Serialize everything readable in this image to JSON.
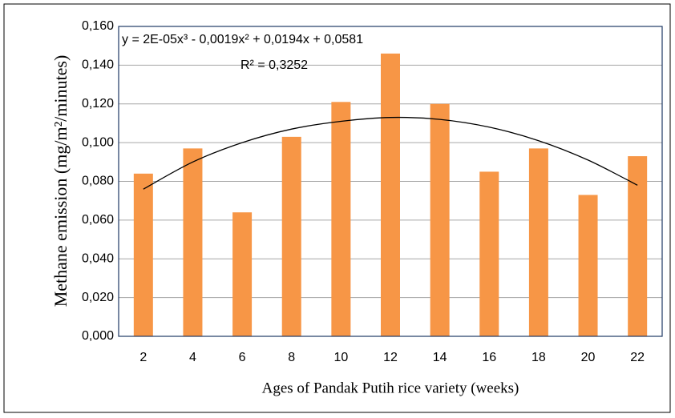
{
  "chart_data": {
    "type": "bar",
    "categories": [
      "2",
      "4",
      "6",
      "8",
      "10",
      "12",
      "14",
      "16",
      "18",
      "20",
      "22"
    ],
    "values": [
      0.084,
      0.097,
      0.064,
      0.103,
      0.121,
      0.146,
      0.12,
      0.085,
      0.097,
      0.073,
      0.093
    ],
    "color": "#f79646",
    "ylim": [
      0,
      0.16
    ],
    "yticks": [
      {
        "value": 0,
        "label": "0,000"
      },
      {
        "value": 0.02,
        "label": "0,020"
      },
      {
        "value": 0.04,
        "label": "0,040"
      },
      {
        "value": 0.06,
        "label": "0,060"
      },
      {
        "value": 0.08,
        "label": "0,080"
      },
      {
        "value": 0.1,
        "label": "0,100"
      },
      {
        "value": 0.12,
        "label": "0,120"
      },
      {
        "value": 0.14,
        "label": "0,140"
      },
      {
        "value": 0.16,
        "label": "0,160"
      }
    ],
    "grid": true,
    "ylabel": "Methane emission (mg/m²/minutes)",
    "xlabel": "Ages of Pandak Putih rice variety (weeks)",
    "trendline": {
      "values": [
        0.076,
        0.09,
        0.1,
        0.107,
        0.111,
        0.113,
        0.112,
        0.108,
        0.101,
        0.091,
        0.078
      ],
      "color": "#000000"
    },
    "annotations": [
      "y = 2E-05x³ - 0,0019x² + 0,0194x + 0,0581",
      "R² = 0,3252"
    ]
  }
}
